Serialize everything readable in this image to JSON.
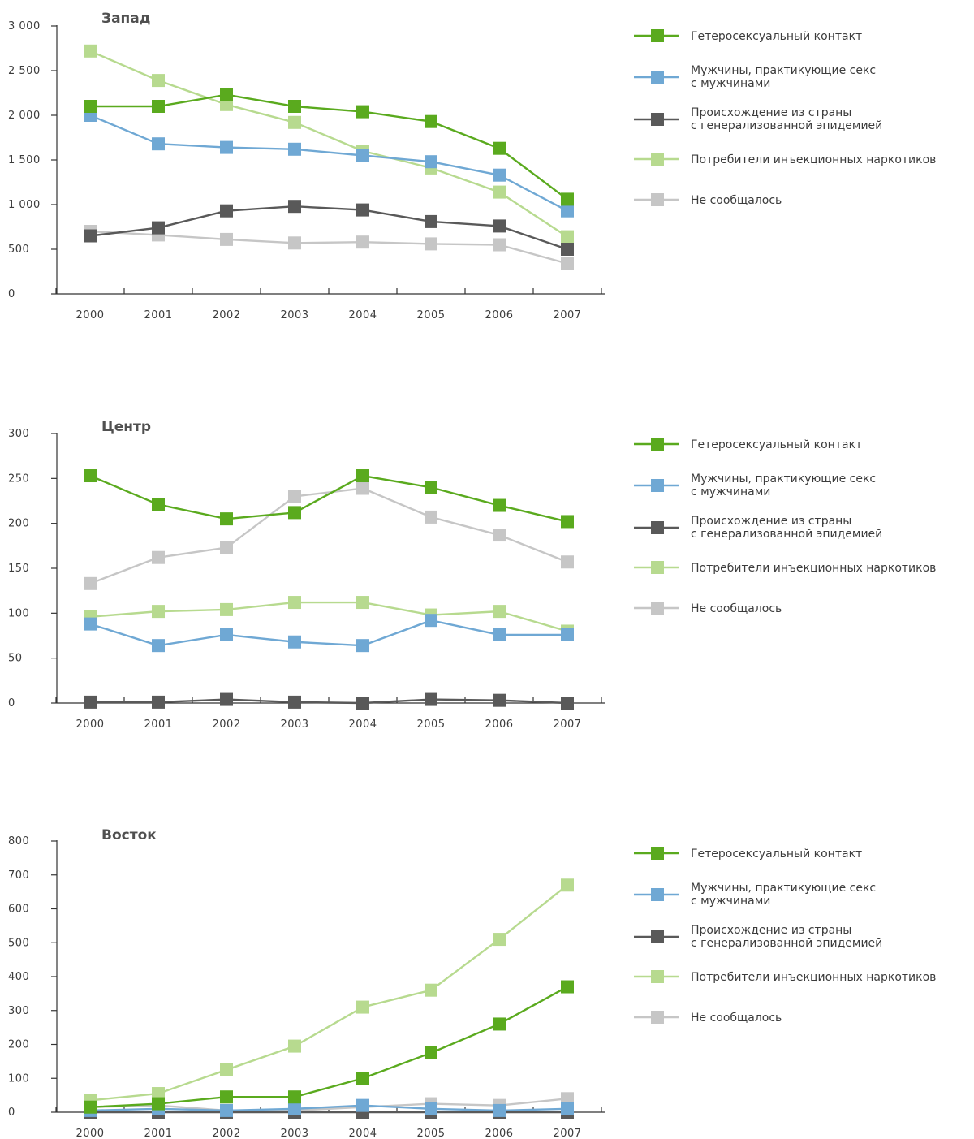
{
  "chart_data": [
    {
      "type": "line",
      "title": "Запад",
      "categories": [
        "2000",
        "2001",
        "2002",
        "2003",
        "2004",
        "2005",
        "2006",
        "2007"
      ],
      "ylim": [
        0,
        3000
      ],
      "yticks": [
        0,
        500,
        1000,
        1500,
        2000,
        2500,
        3000
      ],
      "ytick_labels": [
        "0",
        "500",
        "1 000",
        "1 500",
        "2 000",
        "2 500",
        "3 000"
      ],
      "grid": false,
      "legend_position": "right",
      "series": [
        {
          "name": "Гетеросексуальный контакт",
          "color": "#5aaa1e",
          "values": [
            2100,
            2100,
            2230,
            2100,
            2040,
            1930,
            1630,
            1060
          ]
        },
        {
          "name": "Мужчины, практикующие секс с мужчинами",
          "color": "#6fa8d4",
          "values": [
            2000,
            1680,
            1640,
            1620,
            1550,
            1480,
            1330,
            930
          ]
        },
        {
          "name": "Происхождение из страны с генерализованной эпидемией",
          "color": "#595959",
          "values": [
            650,
            740,
            930,
            980,
            940,
            810,
            760,
            500
          ]
        },
        {
          "name": "Потребители инъекционных наркотиков",
          "color": "#b7da8f",
          "values": [
            2720,
            2390,
            2120,
            1920,
            1600,
            1410,
            1140,
            640
          ]
        },
        {
          "name": "Не сообщалось",
          "color": "#c6c6c6",
          "values": [
            700,
            660,
            610,
            570,
            580,
            560,
            550,
            340
          ]
        }
      ]
    },
    {
      "type": "line",
      "title": "Центр",
      "categories": [
        "2000",
        "2001",
        "2002",
        "2003",
        "2004",
        "2005",
        "2006",
        "2007"
      ],
      "ylim": [
        0,
        300
      ],
      "yticks": [
        0,
        50,
        100,
        150,
        200,
        250,
        300
      ],
      "ytick_labels": [
        "0",
        "50",
        "100",
        "150",
        "200",
        "250",
        "300"
      ],
      "grid": false,
      "legend_position": "right",
      "series": [
        {
          "name": "Гетеросексуальный контакт",
          "color": "#5aaa1e",
          "values": [
            253,
            221,
            205,
            212,
            253,
            240,
            220,
            202
          ]
        },
        {
          "name": "Мужчины, практикующие секс с мужчинами",
          "color": "#6fa8d4",
          "values": [
            88,
            64,
            76,
            68,
            64,
            92,
            76,
            76
          ]
        },
        {
          "name": "Происхождение из страны с генерализованной эпидемией",
          "color": "#595959",
          "values": [
            1,
            1,
            4,
            1,
            0,
            4,
            3,
            0
          ]
        },
        {
          "name": "Потребители инъекционных наркотиков",
          "color": "#b7da8f",
          "values": [
            96,
            102,
            104,
            112,
            112,
            98,
            102,
            80
          ]
        },
        {
          "name": "Не сообщалось",
          "color": "#c6c6c6",
          "values": [
            133,
            162,
            173,
            230,
            239,
            207,
            187,
            157
          ]
        }
      ]
    },
    {
      "type": "line",
      "title": "Восток",
      "categories": [
        "2000",
        "2001",
        "2002",
        "2003",
        "2004",
        "2005",
        "2006",
        "2007"
      ],
      "ylim": [
        0,
        800
      ],
      "yticks": [
        0,
        100,
        200,
        300,
        400,
        500,
        600,
        700,
        800
      ],
      "ytick_labels": [
        "0",
        "100",
        "200",
        "300",
        "400",
        "500",
        "600",
        "700",
        "800"
      ],
      "grid": false,
      "legend_position": "right",
      "series": [
        {
          "name": "Гетеросексуальный контакт",
          "color": "#5aaa1e",
          "values": [
            15,
            25,
            45,
            45,
            100,
            175,
            260,
            370
          ]
        },
        {
          "name": "Мужчины, практикующие секс с мужчинами",
          "color": "#6fa8d4",
          "values": [
            5,
            10,
            5,
            10,
            20,
            10,
            5,
            10
          ]
        },
        {
          "name": "Происхождение из страны с генерализованной эпидемией",
          "color": "#595959",
          "values": [
            0,
            0,
            0,
            0,
            0,
            0,
            0,
            0
          ]
        },
        {
          "name": "Потребители инъекционных наркотиков",
          "color": "#b7da8f",
          "values": [
            35,
            55,
            125,
            195,
            310,
            360,
            510,
            670
          ]
        },
        {
          "name": "Не сообщалось",
          "color": "#c6c6c6",
          "values": [
            15,
            20,
            5,
            5,
            15,
            25,
            20,
            40
          ]
        }
      ]
    }
  ],
  "legends": [
    [
      {
        "line1": "Гетеросексуальный контакт",
        "line2": "",
        "color": "#5aaa1e"
      },
      {
        "line1": "Мужчины, практикующие секс",
        "line2": "с мужчинами",
        "color": "#6fa8d4"
      },
      {
        "line1": "Происхождение из страны",
        "line2": "с генерализованной эпидемией",
        "color": "#595959"
      },
      {
        "line1": "Потребители инъекционных наркотиков",
        "line2": "",
        "color": "#b7da8f"
      },
      {
        "line1": "Не сообщалось",
        "line2": "",
        "color": "#c6c6c6"
      }
    ],
    [
      {
        "line1": "Гетеросексуальный контакт",
        "line2": "",
        "color": "#5aaa1e"
      },
      {
        "line1": "Мужчины, практикующие секс",
        "line2": "с мужчинами",
        "color": "#6fa8d4"
      },
      {
        "line1": "Происхождение из страны",
        "line2": "с генерализованной эпидемией",
        "color": "#595959"
      },
      {
        "line1": "Потребители инъекционных наркотиков",
        "line2": "",
        "color": "#b7da8f"
      },
      {
        "line1": "Не сообщалось",
        "line2": "",
        "color": "#c6c6c6"
      }
    ],
    [
      {
        "line1": "Гетеросексуальный контакт",
        "line2": "",
        "color": "#5aaa1e"
      },
      {
        "line1": "Мужчины, практикующие секс",
        "line2": "с мужчинами",
        "color": "#6fa8d4"
      },
      {
        "line1": "Происхождение из страны",
        "line2": "с генерализованной эпидемией",
        "color": "#595959"
      },
      {
        "line1": "Потребители инъекционных наркотиков",
        "line2": "",
        "color": "#b7da8f"
      },
      {
        "line1": "Не сообщалось",
        "line2": "",
        "color": "#c6c6c6"
      }
    ]
  ]
}
